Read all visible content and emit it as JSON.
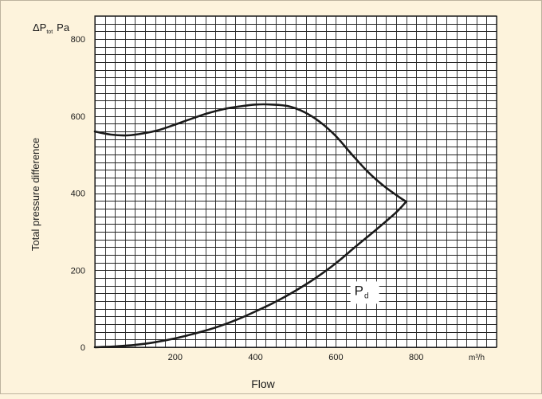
{
  "chart_data": {
    "type": "line",
    "ylabel_unit": {
      "symbol": "ΔP",
      "subscript": "tot",
      "unit": "Pa"
    },
    "xlabel": "Flow",
    "ylabel": "Total pressure difference",
    "xunit": "m³/h",
    "xlim": [
      0,
      1000
    ],
    "ylim": [
      0,
      860
    ],
    "grid": true,
    "x_ticks": [
      {
        "v": 200,
        "label": "200"
      },
      {
        "v": 400,
        "label": "400"
      },
      {
        "v": 600,
        "label": "600"
      },
      {
        "v": 800,
        "label": "800"
      }
    ],
    "y_ticks": [
      {
        "v": 0,
        "label": "0"
      },
      {
        "v": 200,
        "label": "200"
      },
      {
        "v": 400,
        "label": "400"
      },
      {
        "v": 600,
        "label": "600"
      },
      {
        "v": 800,
        "label": "800"
      }
    ],
    "series": [
      {
        "x": [
          0,
          40,
          80,
          120,
          160,
          200,
          240,
          280,
          320,
          360,
          400,
          440,
          480,
          520,
          560,
          600,
          640,
          680,
          720,
          760,
          775
        ],
        "values": [
          560,
          552,
          550,
          555,
          564,
          578,
          593,
          607,
          618,
          625,
          630,
          630,
          626,
          611,
          585,
          548,
          500,
          455,
          418,
          388,
          378
        ]
      },
      {
        "x": [
          0,
          50,
          100,
          150,
          200,
          250,
          300,
          350,
          400,
          450,
          500,
          550,
          600,
          650,
          700,
          750,
          775
        ],
        "values": [
          0,
          2,
          6,
          13,
          23,
          36,
          51,
          70,
          93,
          118,
          147,
          180,
          218,
          262,
          305,
          350,
          378
        ]
      }
    ],
    "annotations": [
      {
        "text": "P",
        "subscript": "d",
        "x": 670,
        "y": 148
      }
    ],
    "colors": {
      "background": "#fdf3dc",
      "plot_area": "#ffffff",
      "grid": "#222222",
      "curve": "#1a1a1a"
    }
  }
}
